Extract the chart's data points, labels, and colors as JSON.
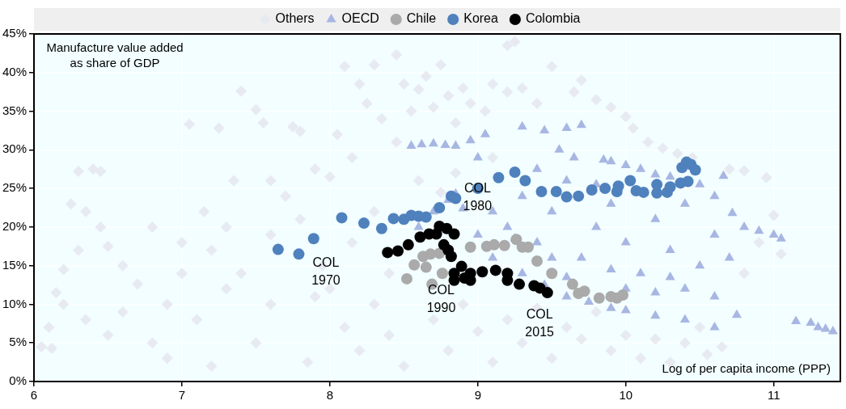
{
  "chart_data": {
    "type": "scatter",
    "xlabel": "Log of per capita income (PPP)",
    "ylabel": "Manufacture value added as share of GDP",
    "xlim": [
      6,
      11.45
    ],
    "xticks": [
      6,
      7,
      8,
      9,
      10,
      11
    ],
    "ylim": [
      0,
      45
    ],
    "yticks": [
      {
        "value": 0,
        "label": "0%"
      },
      {
        "value": 5,
        "label": "5%"
      },
      {
        "value": 10,
        "label": "10%"
      },
      {
        "value": 15,
        "label": "15%"
      },
      {
        "value": 20,
        "label": "20%"
      },
      {
        "value": 25,
        "label": "25%"
      },
      {
        "value": 30,
        "label": "30%"
      },
      {
        "value": 35,
        "label": "35%"
      },
      {
        "value": 40,
        "label": "40%"
      },
      {
        "value": 45,
        "label": "45%"
      }
    ],
    "grid": true,
    "legend": "top",
    "annotations": [
      "COL 1970",
      "COL 1980",
      "COL 1990",
      "COL 2015"
    ],
    "series": [
      {
        "name": "Others",
        "color": "#e8eaf2",
        "marker": "diamond",
        "x": [
          6.05,
          6.12,
          6.1,
          6.15,
          6.2,
          6.2,
          6.25,
          6.3,
          6.4,
          6.45,
          6.35,
          6.45,
          6.3,
          6.5,
          6.6,
          6.7,
          6.35,
          6.5,
          6.6,
          6.8,
          6.9,
          7.0,
          7.05,
          7.15,
          7.25,
          7.3,
          7.4,
          7.5,
          7.55,
          7.6,
          7.7,
          7.75,
          7.8,
          7.9,
          7.95,
          7.1,
          7.3,
          7.5,
          7.6,
          7.85,
          7.2,
          8.0,
          8.05,
          8.1,
          8.2,
          8.25,
          8.3,
          8.35,
          8.45,
          8.5,
          8.55,
          8.0,
          8.1,
          8.2,
          8.3,
          8.4,
          8.5,
          8.6,
          8.65,
          8.7,
          8.75,
          8.8,
          8.85,
          8.9,
          8.95,
          9.05,
          9.1,
          9.2,
          9.25,
          9.2,
          9.3,
          9.4,
          9.1,
          8.7,
          8.8,
          8.9,
          9.0,
          9.1,
          9.2,
          9.3,
          9.4,
          9.5,
          9.6,
          9.7,
          9.8,
          9.9,
          10.0,
          10.1,
          10.2,
          10.3,
          10.4,
          10.5,
          10.55,
          10.65,
          9.5,
          9.65,
          9.7,
          9.8,
          9.9,
          10.0,
          10.05,
          10.15,
          10.25,
          10.35,
          10.45,
          10.7,
          10.8,
          10.95,
          11.0,
          10.9,
          11.05,
          10.8,
          7.0,
          7.2,
          7.4,
          7.6,
          7.8,
          7.9,
          8.15,
          8.3,
          8.4,
          8.6,
          8.75,
          8.85,
          6.8,
          6.9,
          7.35,
          8.15,
          8.45
        ],
        "values": [
          4.5,
          4.3,
          7,
          11.5,
          14.5,
          10,
          23,
          27.2,
          27.5,
          27.2,
          22,
          20,
          17,
          17.5,
          15,
          12.6,
          8,
          6,
          9,
          5,
          3,
          18,
          33.3,
          22,
          32.8,
          20,
          37.6,
          35.2,
          33.5,
          26,
          24,
          33,
          32.4,
          27.5,
          15,
          8,
          12,
          5,
          10,
          2.5,
          2,
          26.5,
          32,
          40.8,
          38.5,
          36,
          41,
          34,
          42.3,
          38.5,
          35,
          12,
          7,
          4,
          10,
          6,
          2,
          37.8,
          39.5,
          35.5,
          41,
          37,
          33.5,
          38,
          36,
          35,
          38.5,
          43.5,
          44,
          37.5,
          38,
          36,
          29,
          8,
          4,
          10,
          6.5,
          2.5,
          8,
          5,
          9.5,
          3,
          7,
          5.5,
          9,
          4,
          6,
          3,
          5.5,
          2.5,
          5,
          7,
          3.5,
          4.5,
          40.8,
          37.5,
          39,
          36.5,
          35.5,
          34.3,
          32.8,
          31,
          30.2,
          29.5,
          29,
          27.5,
          27.3,
          26.4,
          21.5,
          18,
          16.5,
          14,
          14,
          17,
          14,
          19,
          21,
          11,
          18,
          22,
          14,
          26,
          24.5,
          27,
          20,
          10,
          26,
          29,
          31
        ]
      },
      {
        "name": "OECD",
        "color": "#a7b6e2",
        "marker": "triangle",
        "x": [
          9.3,
          9.45,
          9.6,
          9.7,
          9.55,
          9.85,
          9.9,
          10.0,
          10.1,
          10.2,
          10.3,
          10.5,
          10.66,
          10.6,
          10.72,
          10.8,
          10.9,
          11.0,
          11.05,
          8.55,
          8.62,
          8.7,
          8.78,
          8.85,
          8.95,
          9.05,
          9.0,
          11.15,
          11.25,
          11.3,
          11.35,
          11.4,
          10.75,
          10.6,
          10.4,
          10.2,
          10.0,
          9.9,
          9.75,
          9.6,
          9.45,
          9.3,
          9.1,
          8.6,
          8.7,
          8.8,
          8.85,
          8.9,
          9.2,
          9.3,
          9.4,
          9.5,
          9.6,
          9.7,
          9.8,
          9.9,
          10.0,
          10.1,
          10.2,
          10.3,
          10.4,
          10.5,
          10.6,
          9.1,
          9.0,
          9.4,
          9.65,
          9.8,
          10.0,
          10.2,
          10.4,
          10.6,
          10.7,
          9.5,
          9.25,
          9.9,
          10.3,
          9.6
        ],
        "values": [
          33,
          32.5,
          32.8,
          33.2,
          30,
          28.7,
          28.5,
          28,
          27.5,
          26.8,
          26.5,
          25.5,
          26.6,
          24,
          21.8,
          20,
          19.5,
          19,
          18.5,
          30.5,
          30.7,
          30.8,
          30.6,
          30.5,
          31.2,
          32,
          29,
          7.8,
          7.6,
          7,
          6.8,
          6.5,
          8.6,
          7,
          8,
          8.5,
          9.2,
          9.5,
          10.3,
          11,
          12.5,
          14,
          16,
          20,
          22,
          23.5,
          24.3,
          22.4,
          20,
          24,
          18,
          22,
          26,
          16,
          20,
          23,
          18,
          14,
          21,
          17,
          23,
          15,
          19,
          22,
          19,
          27.5,
          29,
          25.5,
          12,
          11.5,
          12,
          11,
          16,
          16,
          18.5,
          14.5,
          13.5,
          13.5
        ]
      },
      {
        "name": "Chile",
        "color": "#aaaaaa",
        "marker": "circle",
        "x": [
          8.52,
          8.57,
          8.63,
          8.68,
          8.65,
          8.69,
          8.74,
          8.76,
          8.95,
          9.06,
          9.11,
          9.18,
          9.26,
          9.3,
          9.34,
          9.4,
          9.5,
          9.64,
          9.68,
          9.72,
          9.82,
          9.9,
          9.94,
          9.98
        ],
        "values": [
          13.3,
          15.1,
          16.2,
          16.5,
          14.8,
          12.6,
          16.6,
          14,
          17.4,
          17.5,
          17.7,
          17.6,
          18.4,
          17.4,
          17.4,
          15.6,
          14,
          12.6,
          11.4,
          11.7,
          10.8,
          11,
          10.8,
          11.2
        ]
      },
      {
        "name": "Korea",
        "color": "#4f81bd",
        "marker": "circle",
        "x": [
          7.65,
          7.79,
          7.89,
          8.08,
          8.23,
          8.35,
          8.43,
          8.5,
          8.55,
          8.6,
          8.65,
          8.74,
          8.82,
          8.85,
          9.0,
          9.14,
          9.25,
          9.32,
          9.43,
          9.53,
          9.6,
          9.68,
          9.77,
          9.86,
          9.94,
          9.95,
          10.03,
          10.07,
          10.12,
          10.21,
          10.21,
          10.28,
          10.3,
          10.37,
          10.42,
          10.38,
          10.41,
          10.44,
          10.47
        ],
        "values": [
          17.1,
          16.5,
          18.5,
          21.2,
          20.5,
          19.8,
          21.1,
          21,
          21.5,
          21.4,
          21.3,
          22.5,
          24,
          23.7,
          25,
          26.4,
          27.1,
          26,
          24.6,
          24.6,
          23.9,
          24,
          24.8,
          25,
          24.6,
          25.3,
          26,
          24.7,
          24.5,
          24.4,
          25.5,
          24.5,
          25.2,
          25.7,
          25.9,
          27.7,
          28.4,
          28.1,
          27.4
        ]
      },
      {
        "name": "Colombia",
        "color": "#000000",
        "marker": "circle",
        "x": [
          8.39,
          8.46,
          8.53,
          8.61,
          8.67,
          8.72,
          8.74,
          8.79,
          8.84,
          8.77,
          8.8,
          8.82,
          8.89,
          8.84,
          8.84,
          8.95,
          8.95,
          8.91,
          9.03,
          9.12,
          9.2,
          9.2,
          9.28,
          9.38,
          9.42,
          9.47
        ],
        "values": [
          16.7,
          16.9,
          17.7,
          18.7,
          19.1,
          19.1,
          20.1,
          19.8,
          19.1,
          17.7,
          17,
          16.2,
          14.9,
          14,
          13.1,
          14,
          13.1,
          13.4,
          14.2,
          14.4,
          14,
          13.1,
          12.6,
          12.4,
          12.1,
          11.5
        ]
      }
    ]
  }
}
